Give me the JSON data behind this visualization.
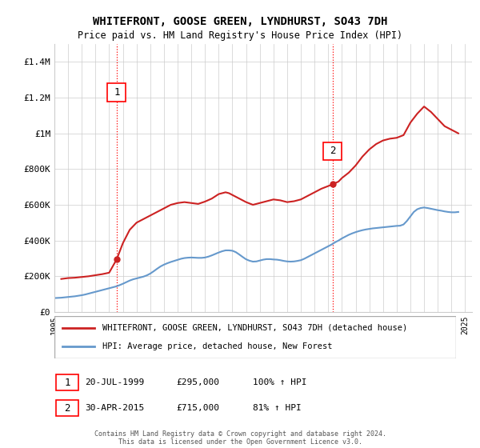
{
  "title": "WHITEFRONT, GOOSE GREEN, LYNDHURST, SO43 7DH",
  "subtitle": "Price paid vs. HM Land Registry's House Price Index (HPI)",
  "legend_line1": "WHITEFRONT, GOOSE GREEN, LYNDHURST, SO43 7DH (detached house)",
  "legend_line2": "HPI: Average price, detached house, New Forest",
  "annotation1_date": "20-JUL-1999",
  "annotation1_price": "£295,000",
  "annotation1_hpi": "100% ↑ HPI",
  "annotation1_year": 1999.55,
  "annotation1_value": 295000,
  "annotation2_date": "30-APR-2015",
  "annotation2_price": "£715,000",
  "annotation2_hpi": "81% ↑ HPI",
  "annotation2_year": 2015.33,
  "annotation2_value": 715000,
  "hpi_color": "#6699cc",
  "price_color": "#cc2222",
  "grid_color": "#cccccc",
  "background_color": "#ffffff",
  "ylim": [
    0,
    1500000
  ],
  "yticks": [
    0,
    200000,
    400000,
    600000,
    800000,
    1000000,
    1200000,
    1400000
  ],
  "ytick_labels": [
    "£0",
    "£200K",
    "£400K",
    "£600K",
    "£800K",
    "£1M",
    "£1.2M",
    "£1.4M"
  ],
  "xlim_start": 1995.0,
  "xlim_end": 2025.5,
  "footer": "Contains HM Land Registry data © Crown copyright and database right 2024.\nThis data is licensed under the Open Government Licence v3.0.",
  "hpi_data_x": [
    1995.0,
    1995.25,
    1995.5,
    1995.75,
    1996.0,
    1996.25,
    1996.5,
    1996.75,
    1997.0,
    1997.25,
    1997.5,
    1997.75,
    1998.0,
    1998.25,
    1998.5,
    1998.75,
    1999.0,
    1999.25,
    1999.5,
    1999.75,
    2000.0,
    2000.25,
    2000.5,
    2000.75,
    2001.0,
    2001.25,
    2001.5,
    2001.75,
    2002.0,
    2002.25,
    2002.5,
    2002.75,
    2003.0,
    2003.25,
    2003.5,
    2003.75,
    2004.0,
    2004.25,
    2004.5,
    2004.75,
    2005.0,
    2005.25,
    2005.5,
    2005.75,
    2006.0,
    2006.25,
    2006.5,
    2006.75,
    2007.0,
    2007.25,
    2007.5,
    2007.75,
    2008.0,
    2008.25,
    2008.5,
    2008.75,
    2009.0,
    2009.25,
    2009.5,
    2009.75,
    2010.0,
    2010.25,
    2010.5,
    2010.75,
    2011.0,
    2011.25,
    2011.5,
    2011.75,
    2012.0,
    2012.25,
    2012.5,
    2012.75,
    2013.0,
    2013.25,
    2013.5,
    2013.75,
    2014.0,
    2014.25,
    2014.5,
    2014.75,
    2015.0,
    2015.25,
    2015.5,
    2015.75,
    2016.0,
    2016.25,
    2016.5,
    2016.75,
    2017.0,
    2017.25,
    2017.5,
    2017.75,
    2018.0,
    2018.25,
    2018.5,
    2018.75,
    2019.0,
    2019.25,
    2019.5,
    2019.75,
    2020.0,
    2020.25,
    2020.5,
    2020.75,
    2021.0,
    2021.25,
    2021.5,
    2021.75,
    2022.0,
    2022.25,
    2022.5,
    2022.75,
    2023.0,
    2023.25,
    2023.5,
    2023.75,
    2024.0,
    2024.25,
    2024.5
  ],
  "hpi_data_y": [
    78000,
    79000,
    80000,
    82000,
    84000,
    86000,
    88000,
    91000,
    94000,
    98000,
    103000,
    108000,
    113000,
    118000,
    123000,
    128000,
    133000,
    138000,
    143000,
    150000,
    158000,
    167000,
    176000,
    183000,
    188000,
    193000,
    198000,
    205000,
    215000,
    228000,
    242000,
    255000,
    265000,
    273000,
    280000,
    286000,
    292000,
    298000,
    302000,
    304000,
    305000,
    304000,
    303000,
    303000,
    305000,
    310000,
    317000,
    325000,
    333000,
    340000,
    345000,
    345000,
    343000,
    335000,
    322000,
    308000,
    295000,
    287000,
    282000,
    283000,
    288000,
    293000,
    296000,
    296000,
    294000,
    293000,
    290000,
    286000,
    283000,
    282000,
    283000,
    286000,
    290000,
    298000,
    308000,
    318000,
    328000,
    338000,
    348000,
    358000,
    368000,
    378000,
    390000,
    400000,
    412000,
    422000,
    432000,
    440000,
    447000,
    453000,
    458000,
    462000,
    465000,
    468000,
    470000,
    472000,
    474000,
    476000,
    478000,
    480000,
    482000,
    483000,
    490000,
    510000,
    535000,
    560000,
    575000,
    582000,
    585000,
    582000,
    578000,
    574000,
    570000,
    567000,
    563000,
    560000,
    558000,
    558000,
    560000
  ],
  "price_data_x": [
    1995.5,
    1996.0,
    1996.5,
    1997.0,
    1997.5,
    1998.0,
    1998.5,
    1999.0,
    1999.55,
    2000.0,
    2000.5,
    2001.0,
    2001.5,
    2002.0,
    2002.5,
    2003.0,
    2003.5,
    2004.0,
    2004.5,
    2005.0,
    2005.5,
    2006.0,
    2006.5,
    2007.0,
    2007.5,
    2007.75,
    2008.0,
    2008.5,
    2009.0,
    2009.5,
    2010.0,
    2010.5,
    2011.0,
    2011.5,
    2012.0,
    2012.5,
    2013.0,
    2013.5,
    2014.0,
    2014.5,
    2015.0,
    2015.33,
    2015.75,
    2016.0,
    2016.5,
    2017.0,
    2017.5,
    2018.0,
    2018.5,
    2019.0,
    2019.5,
    2020.0,
    2020.5,
    2021.0,
    2021.5,
    2022.0,
    2022.5,
    2023.0,
    2023.5,
    2024.0,
    2024.5
  ],
  "price_data_y": [
    185000,
    190000,
    192000,
    196000,
    200000,
    206000,
    212000,
    220000,
    295000,
    385000,
    460000,
    500000,
    520000,
    540000,
    560000,
    580000,
    600000,
    610000,
    615000,
    610000,
    605000,
    618000,
    635000,
    660000,
    670000,
    665000,
    655000,
    635000,
    615000,
    600000,
    610000,
    620000,
    630000,
    625000,
    615000,
    620000,
    630000,
    650000,
    670000,
    690000,
    705000,
    715000,
    730000,
    750000,
    780000,
    820000,
    870000,
    910000,
    940000,
    960000,
    970000,
    975000,
    990000,
    1060000,
    1110000,
    1150000,
    1120000,
    1080000,
    1040000,
    1020000,
    1000000
  ]
}
